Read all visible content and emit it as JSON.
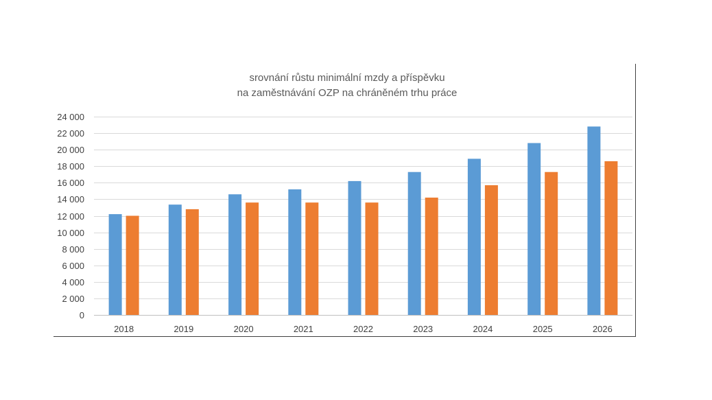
{
  "chart_data": {
    "type": "bar",
    "title": "srovnání růstu minimální mzdy a příspěvku",
    "subtitle": "na zaměstnávání OZP na chráněném trhu práce",
    "categories": [
      "2018",
      "2019",
      "2020",
      "2021",
      "2022",
      "2023",
      "2024",
      "2025",
      "2026"
    ],
    "series": [
      {
        "color": "#5B9BD5",
        "values": [
          12200,
          13350,
          14600,
          15200,
          16200,
          17300,
          18900,
          20800,
          22800
        ]
      },
      {
        "color": "#ED7D31",
        "values": [
          12000,
          12800,
          13600,
          13600,
          13600,
          14200,
          15700,
          17300,
          18600
        ]
      }
    ],
    "ylim": [
      0,
      24000
    ],
    "yticks": [
      0,
      2000,
      4000,
      6000,
      8000,
      10000,
      12000,
      14000,
      16000,
      18000,
      20000,
      22000,
      24000
    ],
    "ytick_labels": [
      "0",
      "2 000",
      "4 000",
      "6 000",
      "8 000",
      "10 000",
      "12 000",
      "14 000",
      "16 000",
      "18 000",
      "20 000",
      "22 000",
      "24 000"
    ],
    "grid": true,
    "legend": "none"
  }
}
